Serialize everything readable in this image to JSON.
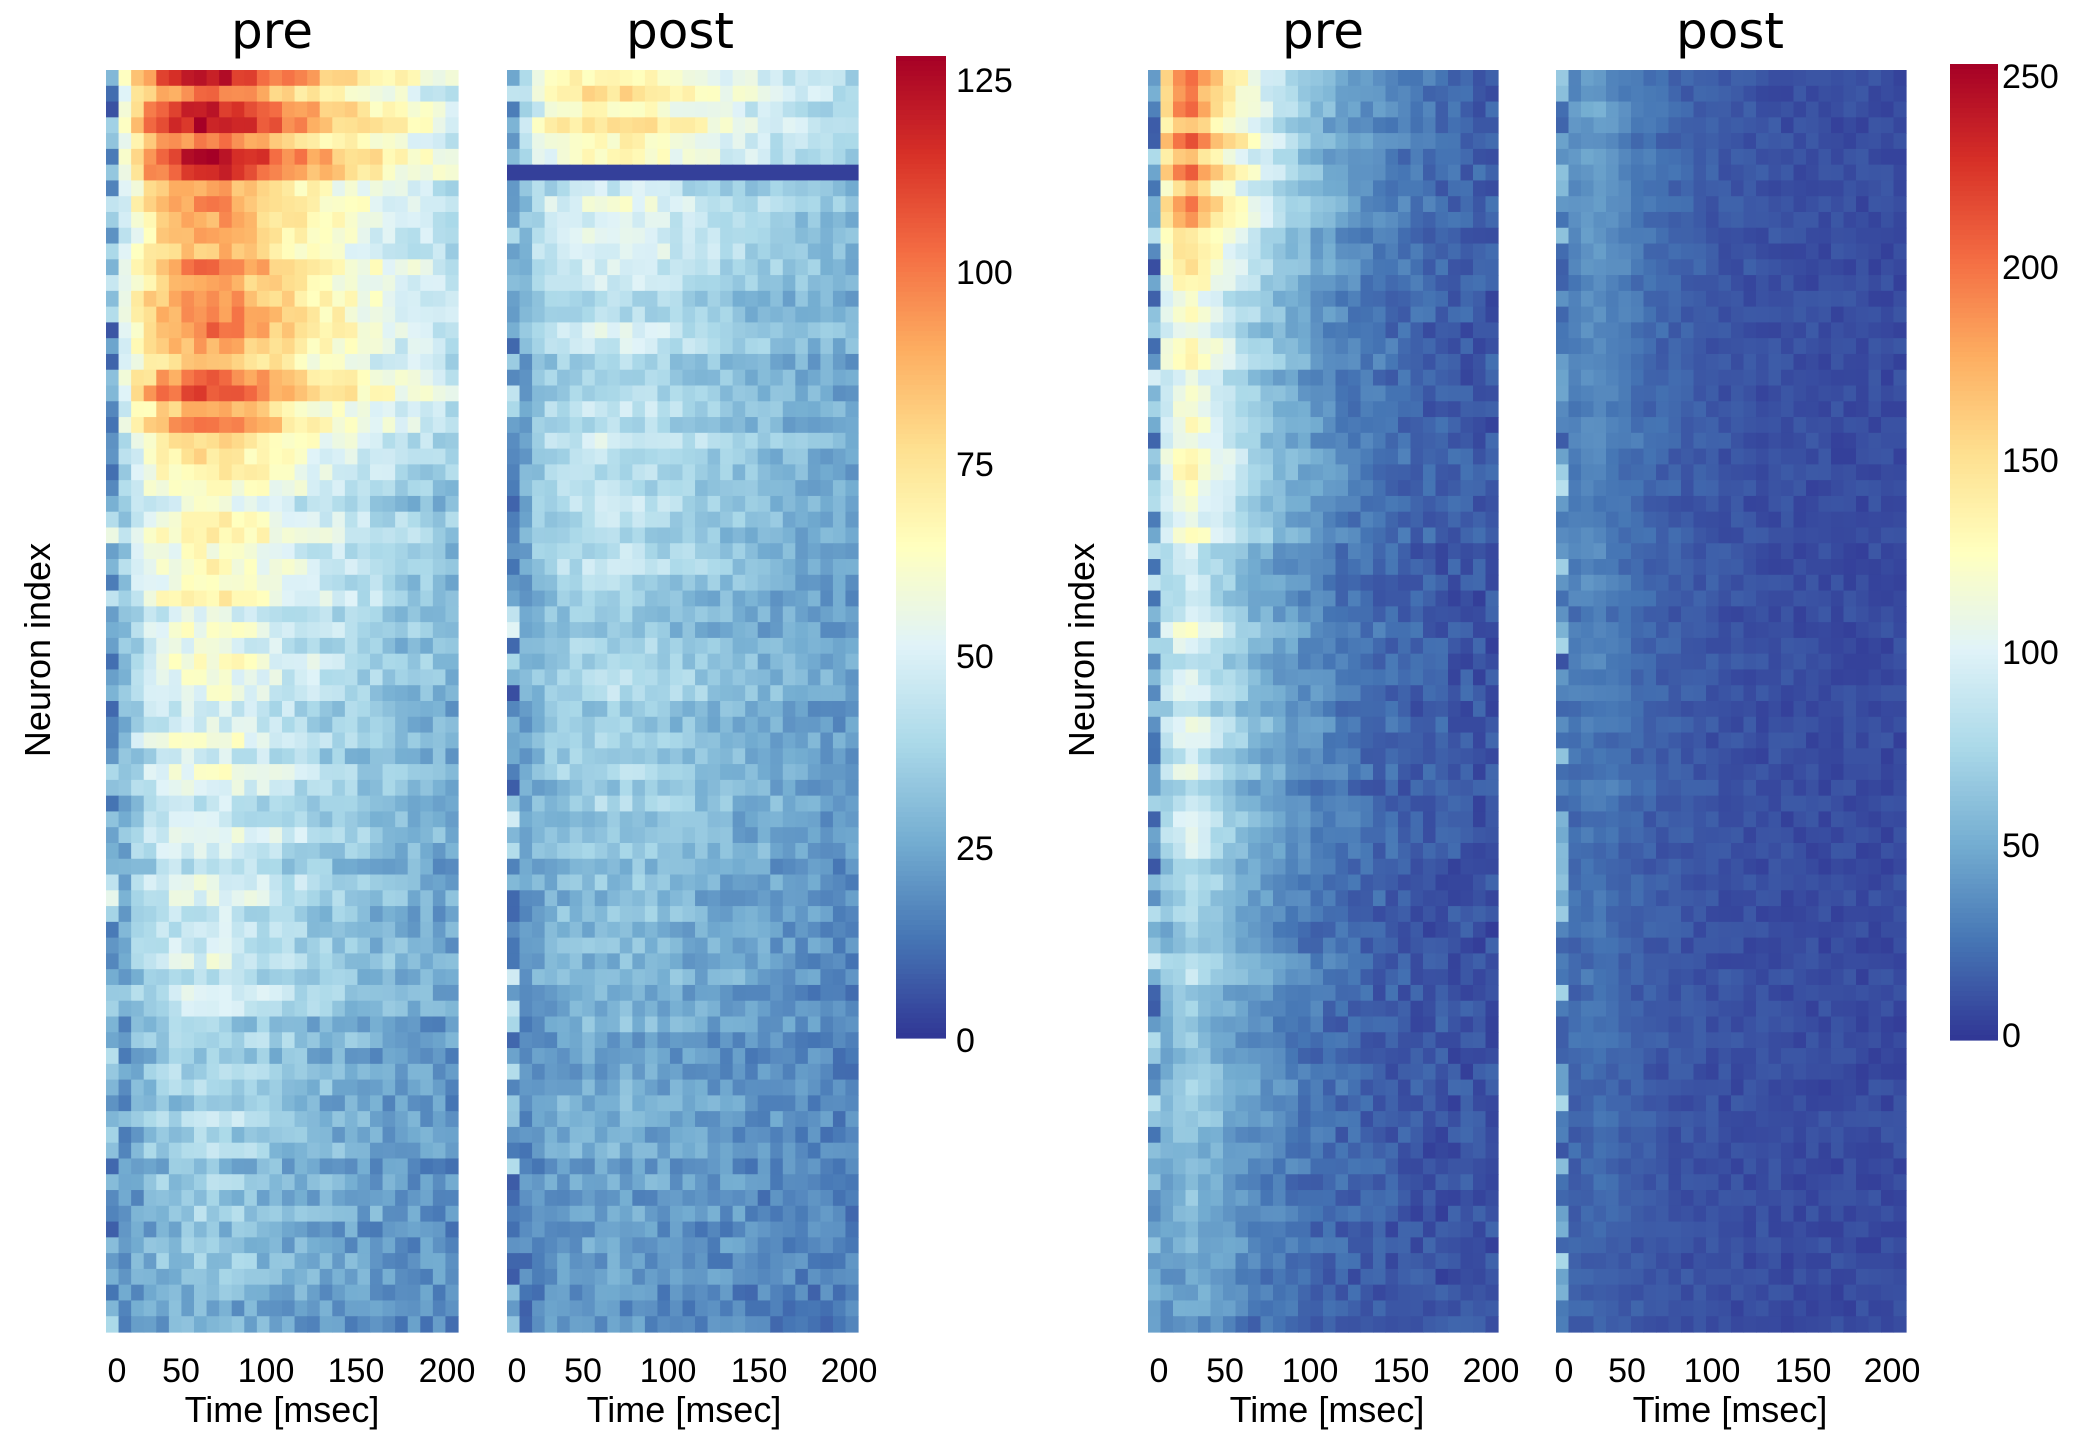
{
  "chart_data": [
    {
      "type": "heatmap",
      "group": "left",
      "title": "pre",
      "xlabel": "Time [msec]",
      "ylabel": "Neuron index",
      "x_ticks": [
        "0",
        "50",
        "100",
        "150",
        "200"
      ],
      "xlim": [
        0,
        200
      ],
      "n_time_bins": 28,
      "n_neurons": 80,
      "value_range": [
        0,
        125
      ],
      "profile": {
        "peak": 80,
        "peak_time": 65,
        "decay_tau": 140,
        "noise": 14,
        "hot_rows_end": 0.32,
        "rise_time": 18,
        "onset_value": 20
      }
    },
    {
      "type": "heatmap",
      "group": "left",
      "title": "post",
      "xlabel": "Time [msec]",
      "ylabel": "",
      "x_ticks": [
        "0",
        "50",
        "100",
        "150",
        "200"
      ],
      "xlim": [
        0,
        200
      ],
      "n_time_bins": 28,
      "n_neurons": 80,
      "value_range": [
        0,
        125
      ],
      "profile": {
        "peak": 45,
        "peak_time": 70,
        "decay_tau": 170,
        "noise": 12,
        "hot_rows_end": 0.07,
        "rise_time": 15,
        "onset_value": 18,
        "dark_row": 0.075
      }
    },
    {
      "type": "heatmap",
      "group": "right",
      "title": "pre",
      "xlabel": "Time [msec]",
      "ylabel": "Neuron index",
      "x_ticks": [
        "0",
        "50",
        "100",
        "150",
        "200"
      ],
      "xlim": [
        0,
        200
      ],
      "n_time_bins": 28,
      "n_neurons": 80,
      "value_range": [
        0,
        250
      ],
      "profile": {
        "peak": 150,
        "peak_time": 25,
        "decay_tau": 55,
        "noise": 18,
        "hot_rows_end": 0.15,
        "rise_time": 8,
        "onset_value": 40
      }
    },
    {
      "type": "heatmap",
      "group": "right",
      "title": "post",
      "xlabel": "Time [msec]",
      "ylabel": "",
      "x_ticks": [
        "0",
        "50",
        "100",
        "150",
        "200"
      ],
      "xlim": [
        0,
        200
      ],
      "n_time_bins": 28,
      "n_neurons": 80,
      "value_range": [
        0,
        250
      ],
      "profile": {
        "peak": 35,
        "peak_time": 25,
        "decay_tau": 40,
        "noise": 10,
        "hot_rows_end": 0.0,
        "rise_time": 6,
        "onset_value": 30
      }
    }
  ],
  "colorbars": [
    {
      "group": "left",
      "min": 0,
      "max": 125,
      "ticks": [
        "0",
        "25",
        "50",
        "75",
        "100",
        "125"
      ]
    },
    {
      "group": "right",
      "min": 0,
      "max": 250,
      "ticks": [
        "0",
        "50",
        "100",
        "150",
        "200",
        "250"
      ]
    }
  ],
  "colormap": [
    "#313695",
    "#4575b4",
    "#74add1",
    "#abd9e9",
    "#e0f3f8",
    "#ffffbf",
    "#fee090",
    "#fdae61",
    "#f46d43",
    "#d73027",
    "#a50026"
  ]
}
